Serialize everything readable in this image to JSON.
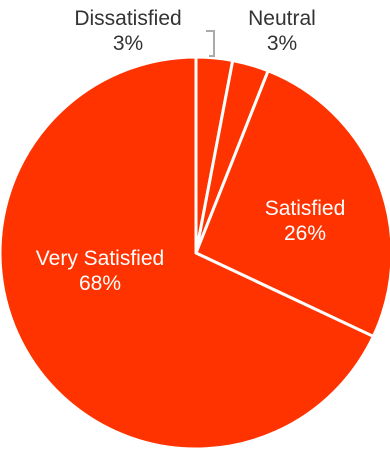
{
  "chart_data": {
    "type": "pie",
    "slices": [
      {
        "label": "Dissatisfied",
        "value": 3,
        "value_label": "3%"
      },
      {
        "label": "Neutral",
        "value": 3,
        "value_label": "3%"
      },
      {
        "label": "Satisfied",
        "value": 26,
        "value_label": "26%"
      },
      {
        "label": "Very Satisfied",
        "value": 68,
        "value_label": "68%"
      }
    ],
    "colors": {
      "slice": "#ff3300",
      "separator": "#ffffff",
      "leader_line": "#aaaaaa",
      "outside_text": "#333333",
      "inside_text": "#ffffff"
    },
    "start_angle_deg": 0,
    "direction": "clockwise"
  }
}
